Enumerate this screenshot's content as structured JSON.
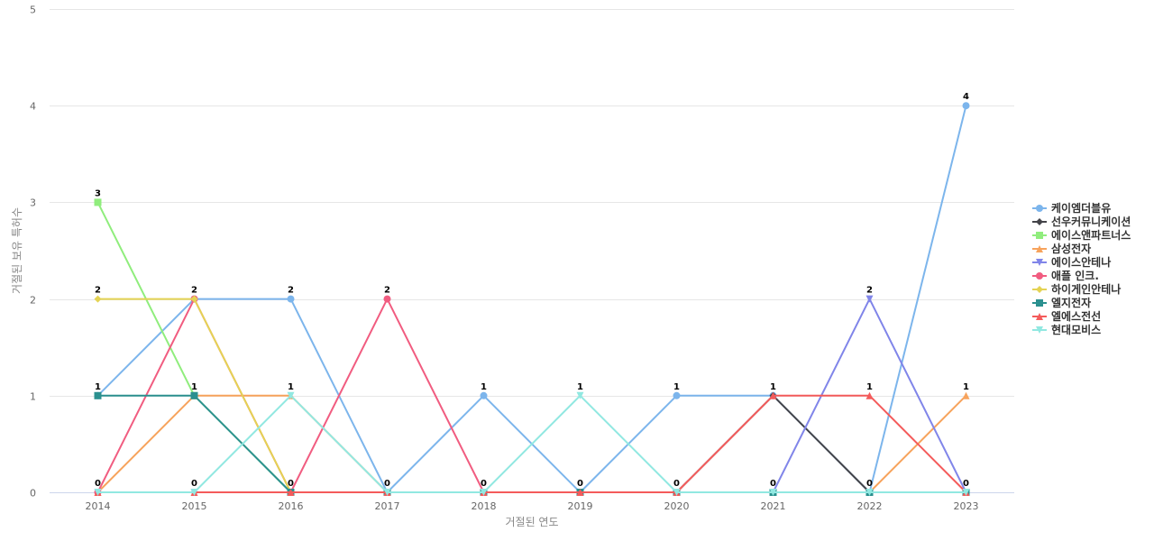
{
  "chart_data": {
    "type": "line",
    "xlabel": "거절된 연도",
    "ylabel": "거절된 보유 특허수",
    "ylim": [
      0,
      5
    ],
    "yticks": [
      0,
      1,
      2,
      3,
      4,
      5
    ],
    "grid": true,
    "legend_position": "right",
    "x": [
      "2014",
      "2015",
      "2016",
      "2017",
      "2018",
      "2019",
      "2020",
      "2021",
      "2022",
      "2023"
    ],
    "series": [
      {
        "name": "케이엠더블유",
        "color": "#7cb5ec",
        "marker": "circle",
        "values": [
          1,
          2,
          2,
          0,
          1,
          0,
          1,
          1,
          0,
          4
        ]
      },
      {
        "name": "선우커뮤니케이션",
        "color": "#434348",
        "marker": "diamond",
        "values": [
          0,
          0,
          0,
          0,
          0,
          0,
          0,
          1,
          0,
          0
        ]
      },
      {
        "name": "에이스앤파트너스",
        "color": "#90ed7d",
        "marker": "square",
        "values": [
          3,
          1,
          0,
          0,
          0,
          0,
          0,
          0,
          0,
          0
        ]
      },
      {
        "name": "삼성전자",
        "color": "#f7a35c",
        "marker": "triangle",
        "values": [
          0,
          1,
          1,
          0,
          0,
          0,
          0,
          0,
          0,
          1
        ]
      },
      {
        "name": "에이스안테나",
        "color": "#8085e9",
        "marker": "triangle-down",
        "values": [
          0,
          0,
          0,
          0,
          0,
          0,
          0,
          0,
          2,
          0
        ]
      },
      {
        "name": "애플 인크.",
        "color": "#f15c80",
        "marker": "circle",
        "values": [
          0,
          2,
          0,
          2,
          0,
          0,
          0,
          0,
          0,
          0
        ]
      },
      {
        "name": "하이게인안테나",
        "color": "#e4d354",
        "marker": "diamond",
        "values": [
          2,
          2,
          0,
          0,
          0,
          0,
          0,
          0,
          0,
          0
        ]
      },
      {
        "name": "엘지전자",
        "color": "#2b908f",
        "marker": "square",
        "values": [
          1,
          1,
          0,
          0,
          0,
          0,
          0,
          0,
          0,
          0
        ]
      },
      {
        "name": "엘에스전선",
        "color": "#f45b5b",
        "marker": "triangle",
        "values": [
          0,
          0,
          0,
          0,
          0,
          0,
          0,
          1,
          1,
          0
        ]
      },
      {
        "name": "현대모비스",
        "color": "#91e8e1",
        "marker": "triangle-down",
        "values": [
          0,
          0,
          1,
          0,
          0,
          1,
          0,
          0,
          0,
          0
        ]
      }
    ],
    "data_labels": [
      {
        "x": "2014",
        "text": "3",
        "y": 3
      },
      {
        "x": "2014",
        "text": "2",
        "y": 2
      },
      {
        "x": "2014",
        "text": "1",
        "y": 1
      },
      {
        "x": "2014",
        "text": "0",
        "y": 0
      },
      {
        "x": "2015",
        "text": "2",
        "y": 2
      },
      {
        "x": "2015",
        "text": "1",
        "y": 1
      },
      {
        "x": "2015",
        "text": "0",
        "y": 0
      },
      {
        "x": "2016",
        "text": "2",
        "y": 2
      },
      {
        "x": "2016",
        "text": "1",
        "y": 1
      },
      {
        "x": "2016",
        "text": "0",
        "y": 0
      },
      {
        "x": "2017",
        "text": "2",
        "y": 2
      },
      {
        "x": "2017",
        "text": "0",
        "y": 0
      },
      {
        "x": "2018",
        "text": "1",
        "y": 1
      },
      {
        "x": "2018",
        "text": "0",
        "y": 0
      },
      {
        "x": "2019",
        "text": "1",
        "y": 1
      },
      {
        "x": "2019",
        "text": "0",
        "y": 0
      },
      {
        "x": "2020",
        "text": "1",
        "y": 1
      },
      {
        "x": "2020",
        "text": "0",
        "y": 0
      },
      {
        "x": "2021",
        "text": "1",
        "y": 1
      },
      {
        "x": "2021",
        "text": "0",
        "y": 0
      },
      {
        "x": "2022",
        "text": "2",
        "y": 2
      },
      {
        "x": "2022",
        "text": "1",
        "y": 1
      },
      {
        "x": "2022",
        "text": "0",
        "y": 0
      },
      {
        "x": "2023",
        "text": "4",
        "y": 4
      },
      {
        "x": "2023",
        "text": "1",
        "y": 1
      },
      {
        "x": "2023",
        "text": "0",
        "y": 0
      }
    ]
  }
}
